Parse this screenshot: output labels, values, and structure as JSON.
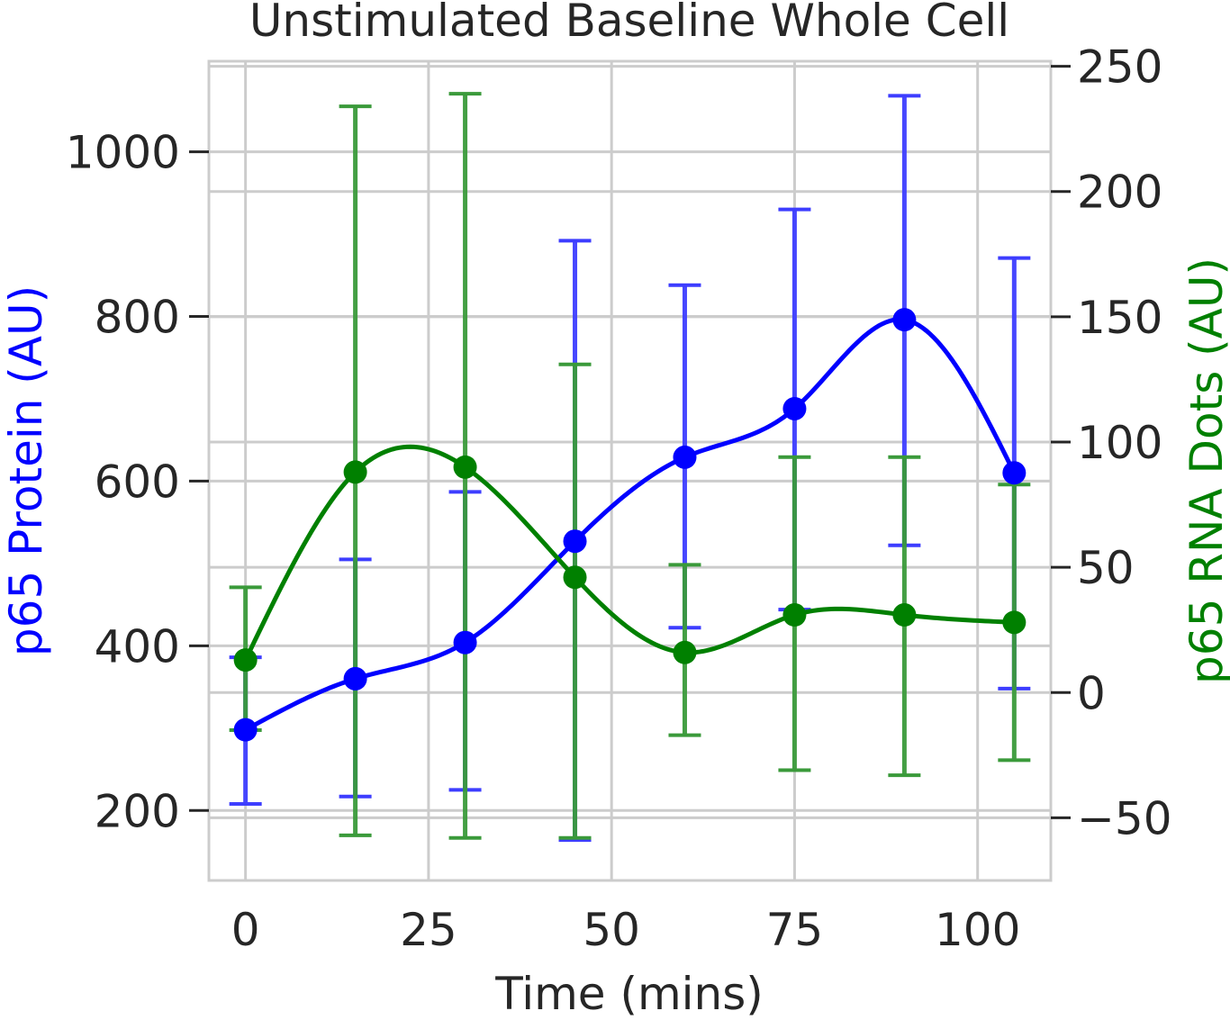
{
  "chart_data": {
    "type": "line",
    "title": "Unstimulated Baseline Whole Cell",
    "xlabel": "Time (mins)",
    "ylabel_left": "p65 Protein (AU)",
    "ylabel_right": "p65 RNA Dots (AU)",
    "xlim": [
      -5,
      110
    ],
    "ylim_left": [
      115,
      1110
    ],
    "ylim_right": [
      -75,
      252
    ],
    "xticks": [
      0,
      25,
      50,
      75,
      100
    ],
    "yticks_left": [
      200,
      400,
      600,
      800,
      1000
    ],
    "yticks_right": [
      -50,
      0,
      50,
      100,
      150,
      200,
      250
    ],
    "ytick_labels_right": [
      "−50",
      "0",
      "50",
      "100",
      "150",
      "200",
      "250"
    ],
    "grid": true,
    "series": [
      {
        "axis": "left",
        "color": "#0000ff",
        "errorbar_color": "#3d3dff",
        "x": [
          0,
          15,
          30,
          45,
          60,
          75,
          90,
          105
        ],
        "y": [
          298,
          360,
          404,
          527,
          629,
          688,
          796,
          610
        ],
        "err_low": [
          208,
          217,
          225,
          164,
          422,
          444,
          522,
          348
        ],
        "err_high": [
          386,
          505,
          587,
          892,
          838,
          930,
          1068,
          871
        ]
      },
      {
        "axis": "right",
        "color": "#008000",
        "errorbar_color": "#3a9a3a",
        "x": [
          0,
          15,
          30,
          45,
          60,
          75,
          90,
          105
        ],
        "y": [
          13,
          88,
          90,
          46,
          16,
          31,
          31,
          28
        ],
        "err_low": [
          -15,
          -57,
          -58,
          -58,
          -17,
          -31,
          -33,
          -27
        ],
        "err_high": [
          42,
          234,
          239,
          131,
          51,
          94,
          94,
          83
        ]
      }
    ]
  }
}
